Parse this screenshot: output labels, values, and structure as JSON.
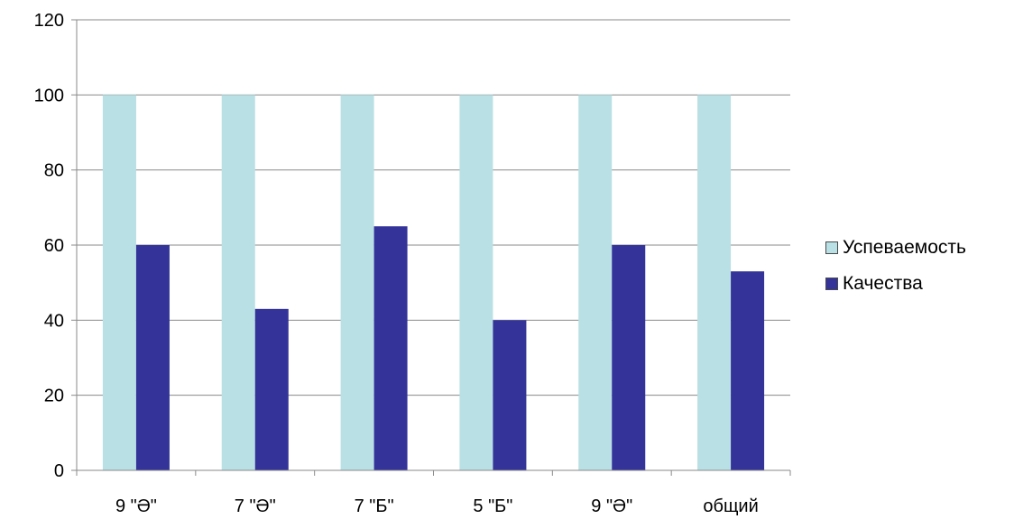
{
  "chart_data": {
    "type": "bar",
    "categories": [
      "9 \"Ә\"",
      "7 \"Ә\"",
      "7 \"Б\"",
      "5 \"Б\"",
      "9 \"Ә\"",
      "общий"
    ],
    "series": [
      {
        "name": "Успеваемость",
        "values": [
          100,
          100,
          100,
          100,
          100,
          100
        ],
        "color": "#b9e0e4"
      },
      {
        "name": "Качества",
        "values": [
          60,
          43,
          65,
          40,
          60,
          53
        ],
        "color": "#333399"
      }
    ],
    "ylim": [
      0,
      120
    ],
    "yticks": [
      "0",
      "20",
      "40",
      "60",
      "80",
      "100",
      "120"
    ],
    "grid": true,
    "legend_position": "right",
    "title": "",
    "xlabel": "",
    "ylabel": ""
  }
}
